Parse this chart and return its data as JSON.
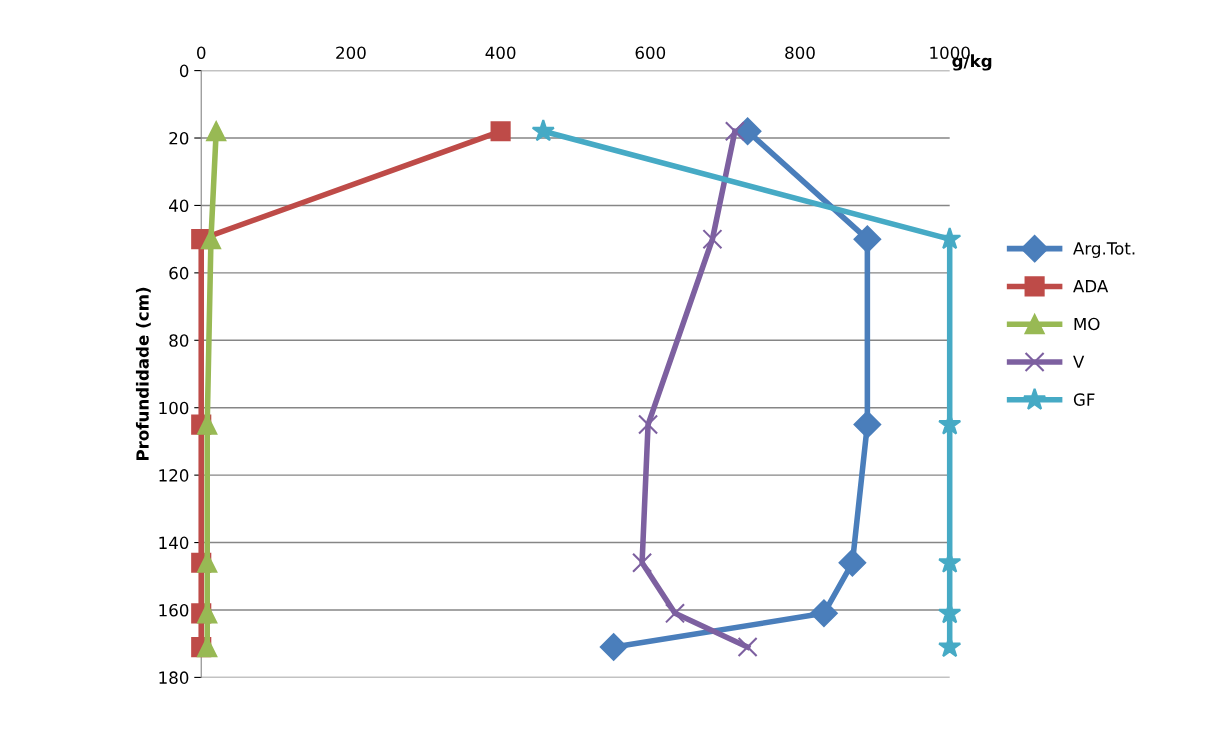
{
  "chart_data": {
    "type": "line",
    "xlabel": "g/kg",
    "ylabel": "Profundidade (cm)",
    "xlim": [
      0,
      1000
    ],
    "xticks": [
      0,
      200,
      400,
      600,
      800,
      1000
    ],
    "ylim": [
      180,
      0
    ],
    "yticks": [
      0,
      20,
      40,
      60,
      80,
      100,
      120,
      140,
      160,
      180
    ],
    "grid": "y",
    "legend": "right",
    "series": [
      {
        "name": "Arg.Tot.",
        "color": "#4a7ebb",
        "marker": "diamond",
        "x": [
          730,
          890,
          890,
          870,
          832,
          551
        ],
        "values": [
          18,
          50,
          105,
          146,
          161,
          171
        ]
      },
      {
        "name": "ADA",
        "color": "#be4b48",
        "marker": "square",
        "x": [
          400,
          0,
          0,
          0,
          0,
          0
        ],
        "values": [
          18,
          50,
          105,
          146,
          161,
          171
        ]
      },
      {
        "name": "MO",
        "color": "#98b954",
        "marker": "triangle",
        "x": [
          20,
          13,
          8,
          8,
          8,
          8
        ],
        "values": [
          18,
          50,
          105,
          146,
          161,
          171
        ]
      },
      {
        "name": "V",
        "color": "#7d60a0",
        "marker": "cross",
        "x": [
          713,
          683,
          597,
          589,
          633,
          730
        ],
        "values": [
          18,
          50,
          105,
          146,
          161,
          171
        ]
      },
      {
        "name": "GF",
        "color": "#46aac5",
        "marker": "star",
        "x": [
          457,
          1000,
          1000,
          1000,
          1000,
          1000
        ],
        "values": [
          18,
          50,
          105,
          146,
          161,
          171
        ]
      }
    ]
  }
}
